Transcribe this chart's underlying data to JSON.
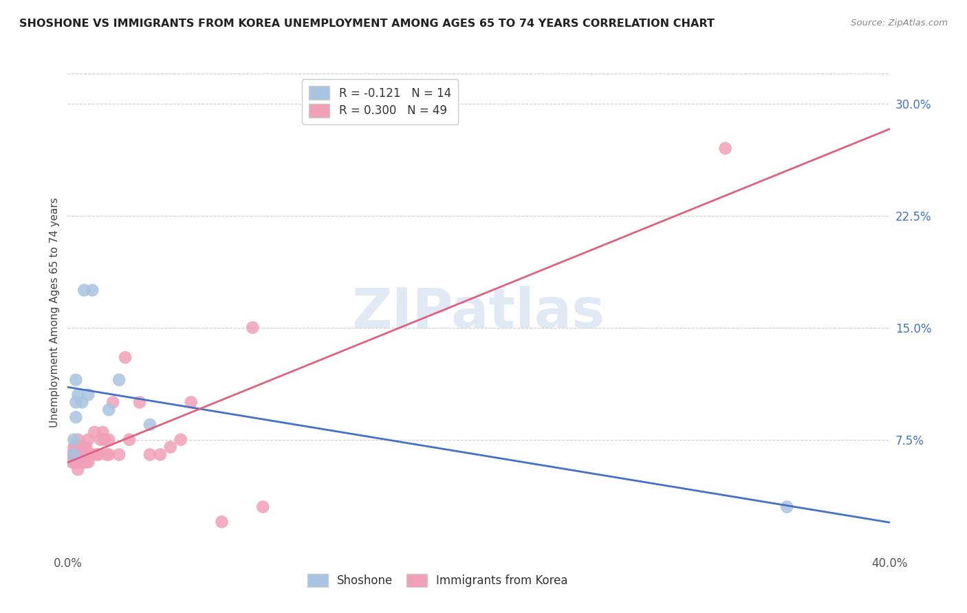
{
  "title": "SHOSHONE VS IMMIGRANTS FROM KOREA UNEMPLOYMENT AMONG AGES 65 TO 74 YEARS CORRELATION CHART",
  "source": "Source: ZipAtlas.com",
  "ylabel": "Unemployment Among Ages 65 to 74 years",
  "right_yticks": [
    "30.0%",
    "22.5%",
    "15.0%",
    "7.5%"
  ],
  "right_ytick_vals": [
    0.3,
    0.225,
    0.15,
    0.075
  ],
  "xlim": [
    0.0,
    0.4
  ],
  "ylim": [
    0.0,
    0.32
  ],
  "legend_top": [
    {
      "label": "R = -0.121   N = 14",
      "color": "#a8c4e0"
    },
    {
      "label": "R = 0.300   N = 49",
      "color": "#f0a0b8"
    }
  ],
  "legend_bottom": [
    {
      "label": "Shoshone",
      "color": "#a8c4e0"
    },
    {
      "label": "Immigrants from Korea",
      "color": "#f0a0b8"
    }
  ],
  "watermark": "ZIPatlas",
  "shoshone_color": "#a8c4e0",
  "korea_color": "#f0a0b8",
  "shoshone_line_color": "#4472c4",
  "korea_line_color": "#e06080",
  "dashed_line_color": "#b0c8e8",
  "shoshone_x": [
    0.003,
    0.003,
    0.004,
    0.004,
    0.004,
    0.005,
    0.007,
    0.008,
    0.01,
    0.012,
    0.02,
    0.025,
    0.04,
    0.35
  ],
  "shoshone_y": [
    0.065,
    0.075,
    0.09,
    0.1,
    0.115,
    0.105,
    0.1,
    0.175,
    0.105,
    0.175,
    0.095,
    0.115,
    0.085,
    0.03
  ],
  "korea_x": [
    0.002,
    0.002,
    0.003,
    0.003,
    0.003,
    0.004,
    0.004,
    0.005,
    0.005,
    0.005,
    0.005,
    0.005,
    0.006,
    0.006,
    0.007,
    0.007,
    0.007,
    0.008,
    0.008,
    0.008,
    0.009,
    0.009,
    0.01,
    0.01,
    0.011,
    0.012,
    0.013,
    0.014,
    0.015,
    0.016,
    0.017,
    0.018,
    0.019,
    0.02,
    0.02,
    0.022,
    0.025,
    0.028,
    0.03,
    0.035,
    0.04,
    0.045,
    0.05,
    0.055,
    0.06,
    0.075,
    0.09,
    0.095,
    0.32
  ],
  "korea_y": [
    0.06,
    0.065,
    0.06,
    0.065,
    0.07,
    0.06,
    0.07,
    0.055,
    0.06,
    0.065,
    0.07,
    0.075,
    0.06,
    0.065,
    0.06,
    0.065,
    0.07,
    0.06,
    0.065,
    0.07,
    0.06,
    0.07,
    0.06,
    0.075,
    0.065,
    0.065,
    0.08,
    0.065,
    0.065,
    0.075,
    0.08,
    0.075,
    0.065,
    0.065,
    0.075,
    0.1,
    0.065,
    0.13,
    0.075,
    0.1,
    0.065,
    0.065,
    0.07,
    0.075,
    0.1,
    0.02,
    0.15,
    0.03,
    0.27
  ],
  "background_color": "#ffffff",
  "grid_color": "#cccccc",
  "shoshone_line_x0": 0.0,
  "shoshone_line_x1": 0.4,
  "korea_line_x0": 0.0,
  "korea_line_x1": 0.4
}
